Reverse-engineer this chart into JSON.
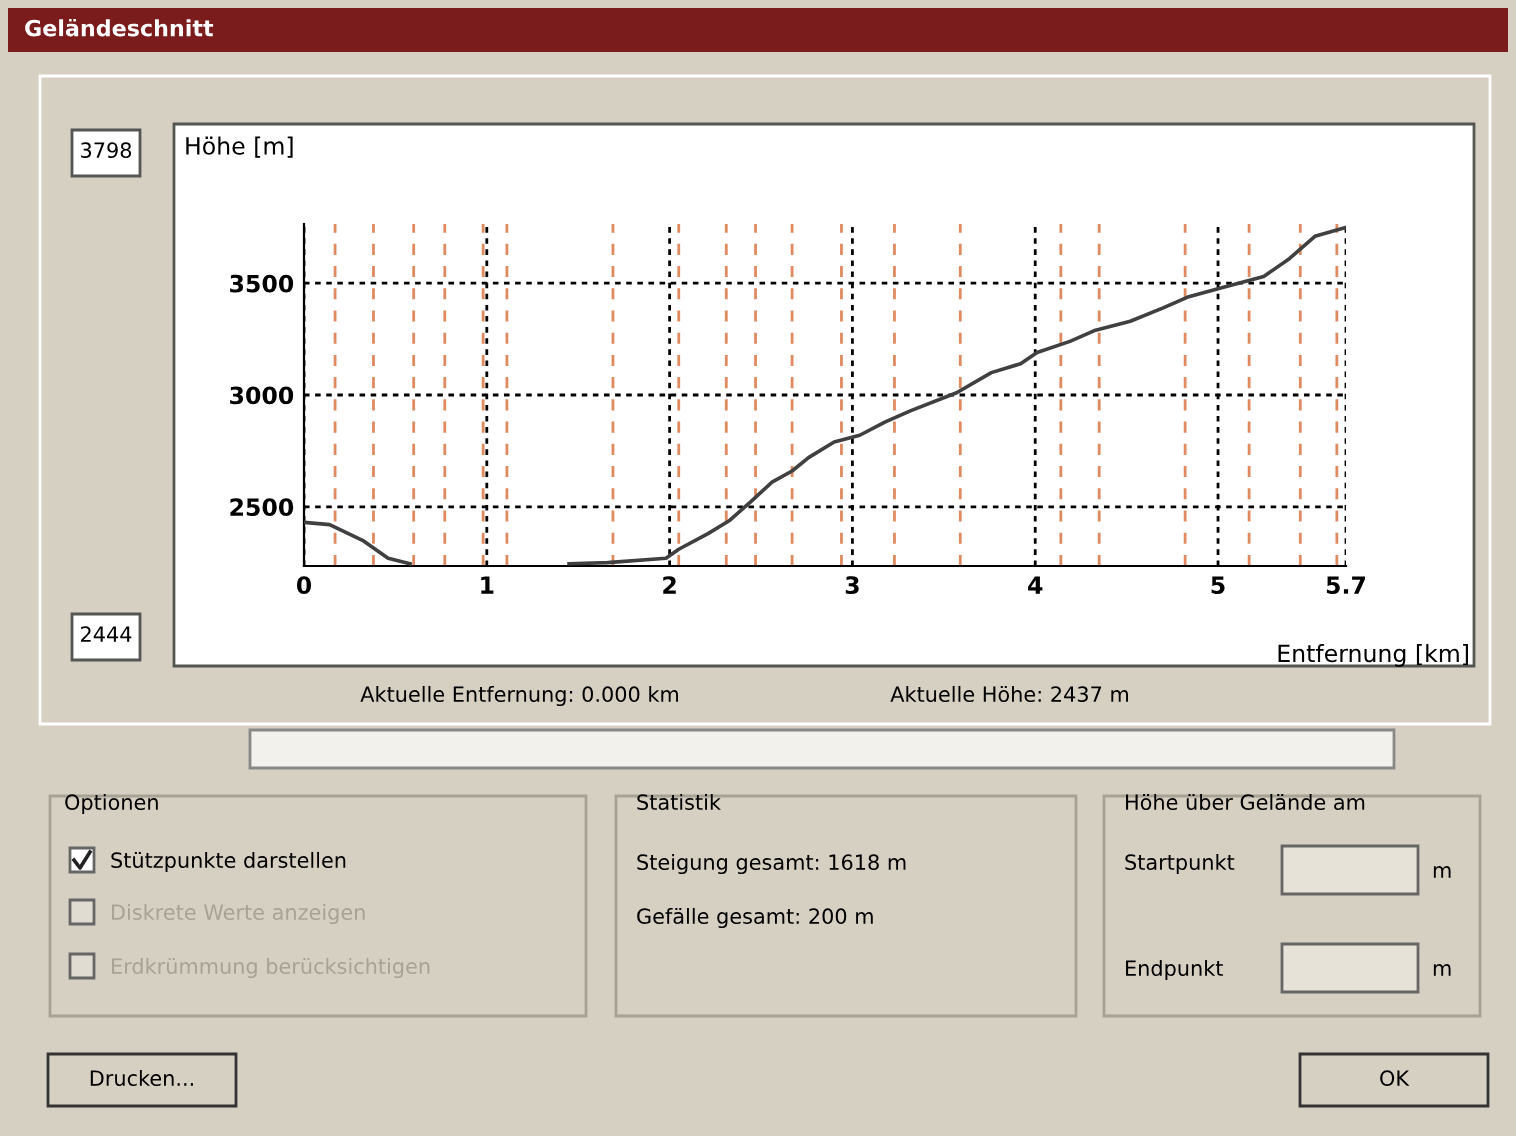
{
  "chart_data": {
    "type": "line",
    "title": "Geländeschnitt",
    "xlabel": "Entfernung [km]",
    "ylabel": "Höhe [m]",
    "x": [
      0,
      0.14,
      0.32,
      0.46,
      0.58,
      1.0,
      1.45,
      1.66,
      1.98,
      2.05,
      2.21,
      2.33,
      2.44,
      2.56,
      2.67,
      2.76,
      2.9,
      3.04,
      3.18,
      3.32,
      3.57,
      3.76,
      3.92,
      4.01,
      4.19,
      4.33,
      4.52,
      4.7,
      4.84,
      5.02,
      5.25,
      5.39,
      5.53,
      5.7
    ],
    "values": [
      2430,
      2420,
      2350,
      2270,
      2245,
      null,
      2245,
      2250,
      2270,
      2310,
      2380,
      2440,
      2520,
      2610,
      2660,
      2720,
      2790,
      2820,
      2880,
      2930,
      3010,
      3100,
      3140,
      3190,
      3240,
      3290,
      3330,
      3390,
      3440,
      3480,
      3530,
      3610,
      3710,
      3750
    ],
    "color": "#404040",
    "marker": "none",
    "line_style": "solid",
    "xlim": [
      0,
      5.7
    ],
    "ylim": [
      2235,
      3765
    ],
    "xticks": [
      0,
      1,
      2,
      3,
      4,
      5,
      5.7
    ],
    "yticks": [
      2500,
      3000,
      3500
    ],
    "grid": true,
    "ref_lines": [
      {
        "axis": "x",
        "value": 0.17,
        "color": "#e08a60",
        "line_style": "dashed"
      },
      {
        "axis": "x",
        "value": 0.38,
        "color": "#e08a60",
        "line_style": "dashed"
      },
      {
        "axis": "x",
        "value": 0.6,
        "color": "#e08a60",
        "line_style": "dashed"
      },
      {
        "axis": "x",
        "value": 0.77,
        "color": "#e08a60",
        "line_style": "dashed"
      },
      {
        "axis": "x",
        "value": 0.98,
        "color": "#e08a60",
        "line_style": "dashed"
      },
      {
        "axis": "x",
        "value": 1.11,
        "color": "#e08a60",
        "line_style": "dashed"
      },
      {
        "axis": "x",
        "value": 1.69,
        "color": "#e08a60",
        "line_style": "dashed"
      },
      {
        "axis": "x",
        "value": 2.05,
        "color": "#e08a60",
        "line_style": "dashed"
      },
      {
        "axis": "x",
        "value": 2.31,
        "color": "#e08a60",
        "line_style": "dashed"
      },
      {
        "axis": "x",
        "value": 2.47,
        "color": "#e08a60",
        "line_style": "dashed"
      },
      {
        "axis": "x",
        "value": 2.67,
        "color": "#e08a60",
        "line_style": "dashed"
      },
      {
        "axis": "x",
        "value": 2.94,
        "color": "#e08a60",
        "line_style": "dashed"
      },
      {
        "axis": "x",
        "value": 3.23,
        "color": "#e08a60",
        "line_style": "dashed"
      },
      {
        "axis": "x",
        "value": 3.59,
        "color": "#e08a60",
        "line_style": "dashed"
      },
      {
        "axis": "x",
        "value": 4.14,
        "color": "#e08a60",
        "line_style": "dashed"
      },
      {
        "axis": "x",
        "value": 4.35,
        "color": "#e08a60",
        "line_style": "dashed"
      },
      {
        "axis": "x",
        "value": 4.82,
        "color": "#e08a60",
        "line_style": "dashed"
      },
      {
        "axis": "x",
        "value": 5.17,
        "color": "#e08a60",
        "line_style": "dashed"
      },
      {
        "axis": "x",
        "value": 5.45,
        "color": "#e08a60",
        "line_style": "dashed"
      },
      {
        "axis": "x",
        "value": 5.65,
        "color": "#e08a60",
        "line_style": "dashed"
      }
    ],
    "annotations": [
      "3798",
      "2444",
      "Aktuelle Entfernung: 0.000 km",
      "Aktuelle Höhe: 2437 m",
      "Optionen",
      "Stützpunkte darstellen",
      "Diskrete Werte anzeigen",
      "Erdkrümmung berücksichtigen",
      "Statistik",
      "Steigung gesamt: 1618 m",
      "Gefälle gesamt: 200 m",
      "Höhe über Gelände am",
      "Startpunkt",
      "m",
      "Endpunkt",
      "m",
      "Drucken...",
      "OK"
    ]
  }
}
